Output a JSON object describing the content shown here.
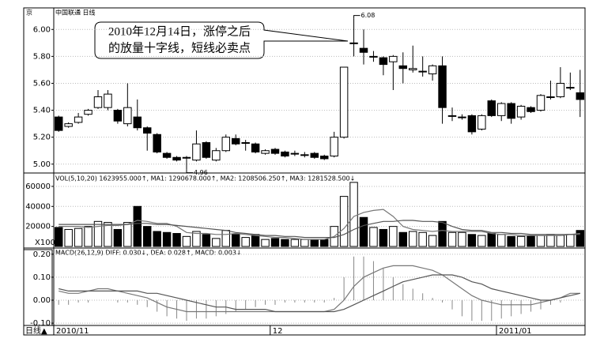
{
  "chart_data": [
    {
      "type": "candlestick",
      "title": "中国联通 日线",
      "y_label": "京",
      "categories": [
        "2010/11",
        null,
        null,
        null,
        null,
        null,
        null,
        null,
        null,
        null,
        null,
        null,
        null,
        null,
        null,
        null,
        null,
        null,
        null,
        null,
        null,
        null,
        "12",
        null,
        null,
        null,
        null,
        null,
        null,
        null,
        null,
        null,
        null,
        null,
        null,
        null,
        null,
        null,
        null,
        null,
        null,
        null,
        null,
        null,
        null,
        "2011/01",
        null,
        null,
        null,
        null,
        null,
        null,
        null,
        null
      ],
      "open": [
        5.35,
        5.28,
        5.31,
        5.37,
        5.42,
        5.42,
        5.4,
        5.3,
        5.35,
        5.27,
        5.22,
        5.08,
        5.05,
        5.05,
        5.03,
        5.16,
        5.03,
        5.1,
        5.19,
        5.16,
        5.15,
        5.08,
        5.11,
        5.09,
        5.08,
        5.07,
        5.08,
        5.06,
        5.06,
        5.2,
        5.9,
        5.86,
        5.8,
        5.79,
        5.76,
        5.73,
        5.7,
        5.69,
        5.67,
        5.73,
        5.36,
        5.35,
        5.36,
        5.26,
        5.47,
        5.36,
        5.45,
        5.35,
        5.42,
        5.4,
        5.5,
        5.5,
        5.57,
        5.53
      ],
      "high": [
        5.36,
        5.31,
        5.38,
        5.41,
        5.55,
        5.55,
        5.41,
        5.6,
        5.48,
        5.28,
        5.23,
        5.09,
        5.06,
        5.06,
        5.25,
        5.17,
        5.12,
        5.22,
        5.22,
        5.18,
        5.16,
        5.11,
        5.12,
        5.1,
        5.1,
        5.09,
        5.09,
        5.07,
        5.24,
        5.72,
        6.08,
        6.0,
        5.84,
        5.8,
        5.81,
        5.83,
        5.88,
        5.8,
        5.74,
        5.8,
        5.42,
        5.37,
        5.37,
        5.37,
        5.48,
        5.46,
        5.46,
        5.44,
        5.43,
        5.52,
        5.62,
        5.72,
        5.68,
        5.7
      ],
      "low": [
        5.24,
        5.27,
        5.3,
        5.36,
        5.41,
        5.4,
        5.3,
        5.28,
        5.25,
        5.1,
        5.08,
        5.04,
        5.02,
        4.96,
        5.02,
        5.04,
        5.02,
        5.09,
        5.14,
        5.1,
        5.08,
        5.07,
        5.07,
        5.05,
        5.06,
        5.05,
        5.04,
        5.03,
        5.05,
        5.19,
        5.8,
        5.74,
        5.76,
        5.66,
        5.55,
        5.6,
        5.68,
        5.65,
        5.62,
        5.3,
        5.32,
        5.33,
        5.22,
        5.25,
        5.35,
        5.32,
        5.3,
        5.33,
        5.38,
        5.39,
        5.48,
        5.49,
        5.55,
        5.35
      ],
      "close": [
        5.25,
        5.3,
        5.35,
        5.4,
        5.5,
        5.52,
        5.32,
        5.42,
        5.27,
        5.23,
        5.09,
        5.05,
        5.03,
        5.05,
        5.15,
        5.05,
        5.1,
        5.2,
        5.15,
        5.16,
        5.09,
        5.1,
        5.08,
        5.06,
        5.08,
        5.07,
        5.05,
        5.04,
        5.2,
        5.72,
        5.9,
        5.83,
        5.8,
        5.74,
        5.8,
        5.71,
        5.71,
        5.69,
        5.73,
        5.42,
        5.36,
        5.35,
        5.24,
        5.36,
        5.36,
        5.45,
        5.34,
        5.43,
        5.39,
        5.51,
        5.5,
        5.6,
        5.57,
        5.48
      ],
      "ylim": [
        4.94,
        6.16
      ],
      "yticks": [
        {
          "value": 5,
          "label": "5.00"
        },
        {
          "value": 5.2,
          "label": "5.20"
        },
        {
          "value": 5.4,
          "label": "5.40"
        },
        {
          "value": 5.6,
          "label": "5.60"
        },
        {
          "value": 5.8,
          "label": "5.80"
        },
        {
          "value": 6,
          "label": "6.00"
        }
      ],
      "max_label": "6.08",
      "min_label": "4.96",
      "annotation": [
        "2010年12月14日，涨停之后",
        "的放量十字线，短线必卖点"
      ],
      "footer_label": "日线▲"
    },
    {
      "type": "bar",
      "title": "VOL(5,10,20)  1623955.000↑, MA1: 1290678.000↑, MA2: 1208506.250↑, MA3: 1281528.500↓",
      "unit_label": "X100",
      "values": [
        19000,
        17000,
        18000,
        20000,
        25000,
        24000,
        17000,
        24000,
        40000,
        20000,
        15000,
        14000,
        13000,
        10000,
        15000,
        12000,
        8000,
        16000,
        12000,
        9000,
        12000,
        7000,
        8000,
        7000,
        7000,
        7000,
        7000,
        7000,
        20000,
        50000,
        64000,
        29000,
        19000,
        17000,
        20000,
        14000,
        15000,
        14000,
        11000,
        25000,
        14000,
        14000,
        12000,
        11000,
        13000,
        12000,
        10000,
        10000,
        11000,
        11000,
        12000,
        11000,
        12000,
        16000
      ],
      "series": [
        {
          "color": "#777777",
          "values": [
            20000,
            20000,
            20000,
            19000,
            20000,
            21000,
            21000,
            22000,
            26000,
            25000,
            23000,
            23000,
            20000,
            14000,
            13000,
            13000,
            12000,
            12000,
            13000,
            12000,
            11000,
            10000,
            9000,
            9000,
            8000,
            7000,
            7000,
            7000,
            10000,
            18000,
            30000,
            34000,
            36000,
            37000,
            30000,
            20000,
            17000,
            16000,
            15000,
            16000,
            15000,
            15000,
            15000,
            15000,
            13000,
            12000,
            12000,
            11000,
            11000,
            11000,
            11000,
            11000,
            12000,
            13000
          ]
        },
        {
          "color": "#555555",
          "values": [
            22000,
            22000,
            22000,
            22000,
            22000,
            22000,
            22000,
            22000,
            23000,
            23000,
            22000,
            22000,
            21000,
            20000,
            19000,
            18000,
            17000,
            16000,
            14000,
            13000,
            12000,
            11000,
            11000,
            10000,
            10000,
            9000,
            9000,
            9000,
            9000,
            12000,
            17000,
            21000,
            23000,
            25000,
            25000,
            26000,
            26000,
            25000,
            25000,
            24000,
            20000,
            17000,
            16000,
            16000,
            14000,
            14000,
            13000,
            13000,
            12000,
            12000,
            12000,
            12000,
            12000,
            12000
          ]
        }
      ],
      "ylim": [
        0,
        71000
      ],
      "yticks": [
        20000,
        40000,
        60000
      ]
    },
    {
      "type": "bar",
      "title": "MACD(26,12,9)  DIFF: 0.030↓, DEA: 0.028↑, MACD: 0.003↓",
      "values": [
        -0.02,
        -0.02,
        -0.01,
        -0.01,
        0,
        0,
        -0.01,
        -0.01,
        -0.02,
        -0.03,
        -0.05,
        -0.07,
        -0.08,
        -0.09,
        -0.08,
        -0.08,
        -0.07,
        -0.06,
        -0.05,
        -0.04,
        -0.03,
        -0.02,
        -0.02,
        -0.01,
        -0.01,
        -0.01,
        -0.01,
        -0.01,
        0.01,
        0.1,
        0.19,
        0.19,
        0.17,
        0.14,
        0.1,
        0.07,
        0.05,
        0.03,
        0.01,
        -0.01,
        -0.04,
        -0.07,
        -0.09,
        -0.09,
        -0.09,
        -0.08,
        -0.07,
        -0.06,
        -0.05,
        -0.04,
        -0.02,
        -0.01,
        0,
        0
      ],
      "color": "#888888",
      "series": [
        {
          "color": "#777777",
          "values": [
            0.04,
            0.03,
            0.03,
            0.04,
            0.05,
            0.05,
            0.04,
            0.03,
            0.02,
            0.01,
            -0.01,
            -0.03,
            -0.04,
            -0.05,
            -0.05,
            -0.05,
            -0.05,
            -0.05,
            -0.05,
            -0.05,
            -0.05,
            -0.05,
            -0.05,
            -0.05,
            -0.05,
            -0.05,
            -0.05,
            -0.05,
            -0.04,
            0.0,
            0.06,
            0.1,
            0.12,
            0.14,
            0.15,
            0.15,
            0.15,
            0.14,
            0.13,
            0.11,
            0.08,
            0.05,
            0.02,
            0.0,
            -0.01,
            -0.02,
            -0.02,
            -0.02,
            -0.02,
            -0.01,
            0.0,
            0.01,
            0.03,
            0.03
          ]
        },
        {
          "color": "#555555",
          "values": [
            0.05,
            0.04,
            0.04,
            0.04,
            0.04,
            0.04,
            0.04,
            0.04,
            0.04,
            0.03,
            0.03,
            0.02,
            0.01,
            0.0,
            -0.01,
            -0.02,
            -0.03,
            -0.03,
            -0.04,
            -0.04,
            -0.04,
            -0.04,
            -0.05,
            -0.05,
            -0.05,
            -0.05,
            -0.05,
            -0.05,
            -0.05,
            -0.04,
            -0.02,
            0.0,
            0.02,
            0.04,
            0.06,
            0.08,
            0.09,
            0.1,
            0.11,
            0.11,
            0.11,
            0.1,
            0.08,
            0.07,
            0.05,
            0.04,
            0.03,
            0.02,
            0.01,
            0.0,
            0.0,
            0.01,
            0.02,
            0.03
          ]
        }
      ],
      "ylim": [
        -0.11,
        0.22
      ],
      "yticks": [
        {
          "value": -0.1,
          "label": "-0.10"
        },
        {
          "value": 0,
          "label": "0.00"
        },
        {
          "value": 0.1,
          "label": "0.10"
        },
        {
          "value": 0.2,
          "label": "0.20"
        }
      ]
    }
  ]
}
